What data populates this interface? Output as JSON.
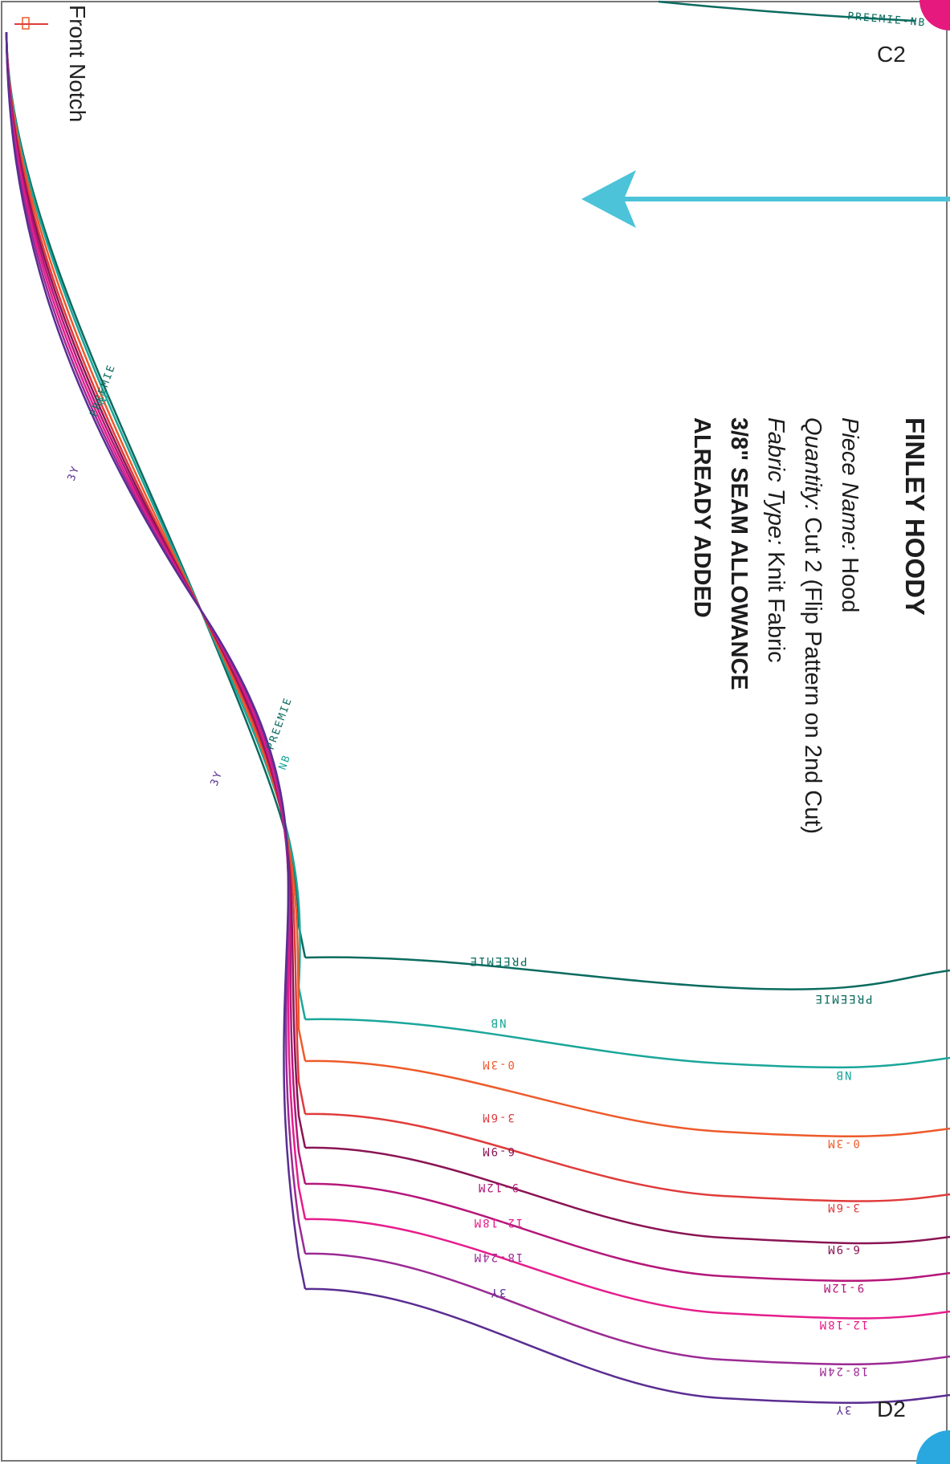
{
  "pattern": {
    "title": "FINLEY HOODY",
    "piece_name_label": "Piece Name:",
    "piece_name_value": "Hood",
    "quantity_label": "Quantity:",
    "quantity_value": "Cut 2 (Flip Pattern on 2nd Cut)",
    "fabric_label": "Fabric Type:",
    "fabric_value": "Knit Fabric",
    "seam_line1": "3/8\" SEAM ALLOWANCE",
    "seam_line2": "ALREADY ADDED",
    "front_notch": "Front Notch",
    "page_top": "C2",
    "page_bottom": "D2"
  },
  "colors": {
    "magenta_dot": "#e5197e",
    "cyan_dot": "#29a8df",
    "arrow": "#4cc3d9",
    "frame": "#777777"
  },
  "icons": {
    "grainline_arrow": "arrow-left-icon",
    "registration_dots": "circle-icon"
  },
  "sizes": [
    {
      "name": "PREEMIE",
      "color": "#0b6b5f"
    },
    {
      "name": "NB",
      "color": "#1aa69a"
    },
    {
      "name": "0-3M",
      "color": "#ee5a2a"
    },
    {
      "name": "3-6M",
      "color": "#e03b3b"
    },
    {
      "name": "6-9M",
      "color": "#8a1454"
    },
    {
      "name": "9-12M",
      "color": "#b5177a"
    },
    {
      "name": "12-18M",
      "color": "#e61d8c"
    },
    {
      "name": "18-24M",
      "color": "#9b2a94"
    },
    {
      "name": "3Y",
      "color": "#5a2d91"
    }
  ]
}
